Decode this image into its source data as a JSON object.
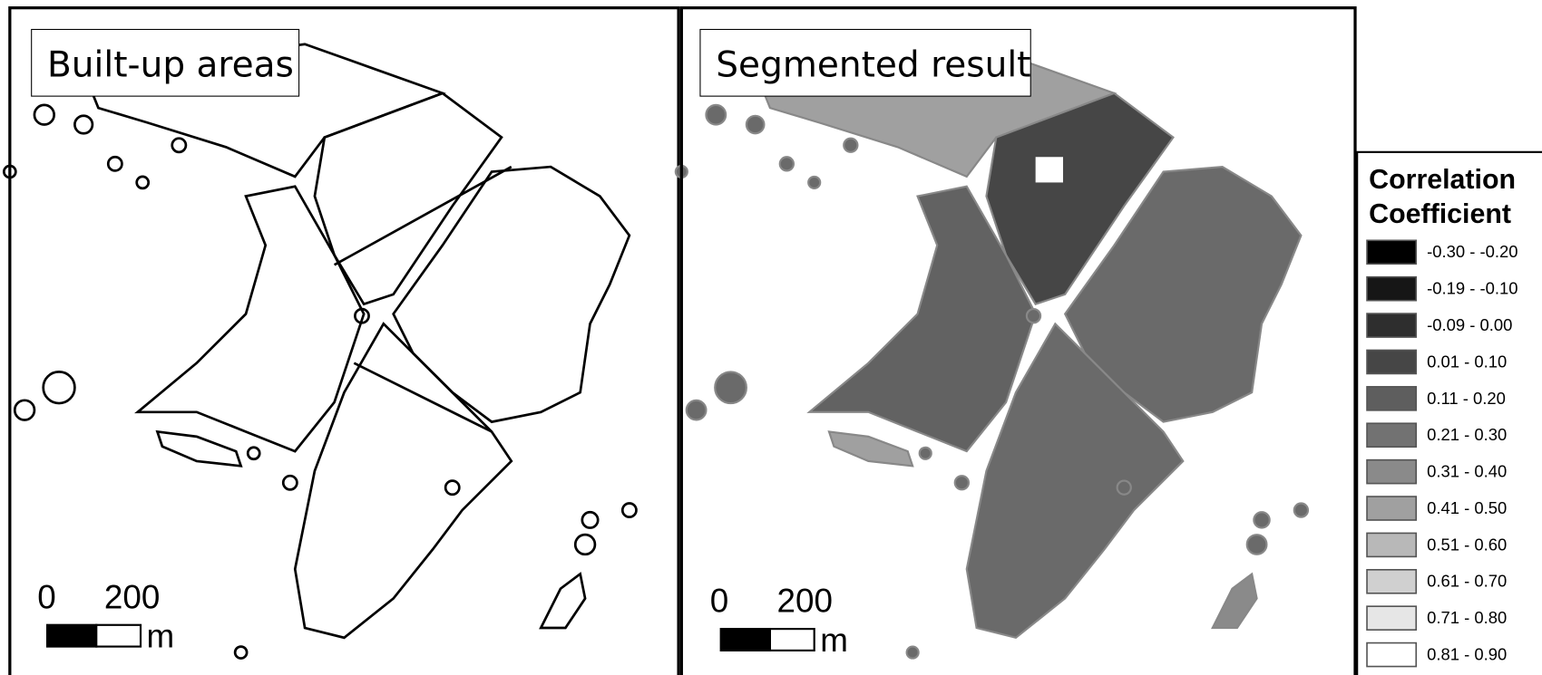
{
  "panels": [
    {
      "label": "Built-up areas",
      "scale": {
        "ticks": [
          0,
          200
        ],
        "unit": "m"
      }
    },
    {
      "label": "Segmented result",
      "scale": {
        "ticks": [
          0,
          200
        ],
        "unit": "m"
      }
    }
  ],
  "legend": {
    "title": [
      "Correlation",
      "Coefficient"
    ],
    "items": [
      {
        "label": "-0.30 - -0.20",
        "color": "#000000"
      },
      {
        "label": "-0.19 - -0.10",
        "color": "#161616"
      },
      {
        "label": "-0.09 - 0.00",
        "color": "#2e2e2e"
      },
      {
        "label": "0.01 - 0.10",
        "color": "#464646"
      },
      {
        "label": "0.11 - 0.20",
        "color": "#5e5e5e"
      },
      {
        "label": "0.21 - 0.30",
        "color": "#727272"
      },
      {
        "label": "0.31 - 0.40",
        "color": "#8a8a8a"
      },
      {
        "label": "0.41 - 0.50",
        "color": "#a0a0a0"
      },
      {
        "label": "0.51 - 0.60",
        "color": "#b8b8b8"
      },
      {
        "label": "0.61 - 0.70",
        "color": "#d0d0d0"
      },
      {
        "label": "0.71 - 0.80",
        "color": "#e6e6e6"
      },
      {
        "label": "0.81 - 0.90",
        "color": "#ffffff"
      }
    ]
  }
}
